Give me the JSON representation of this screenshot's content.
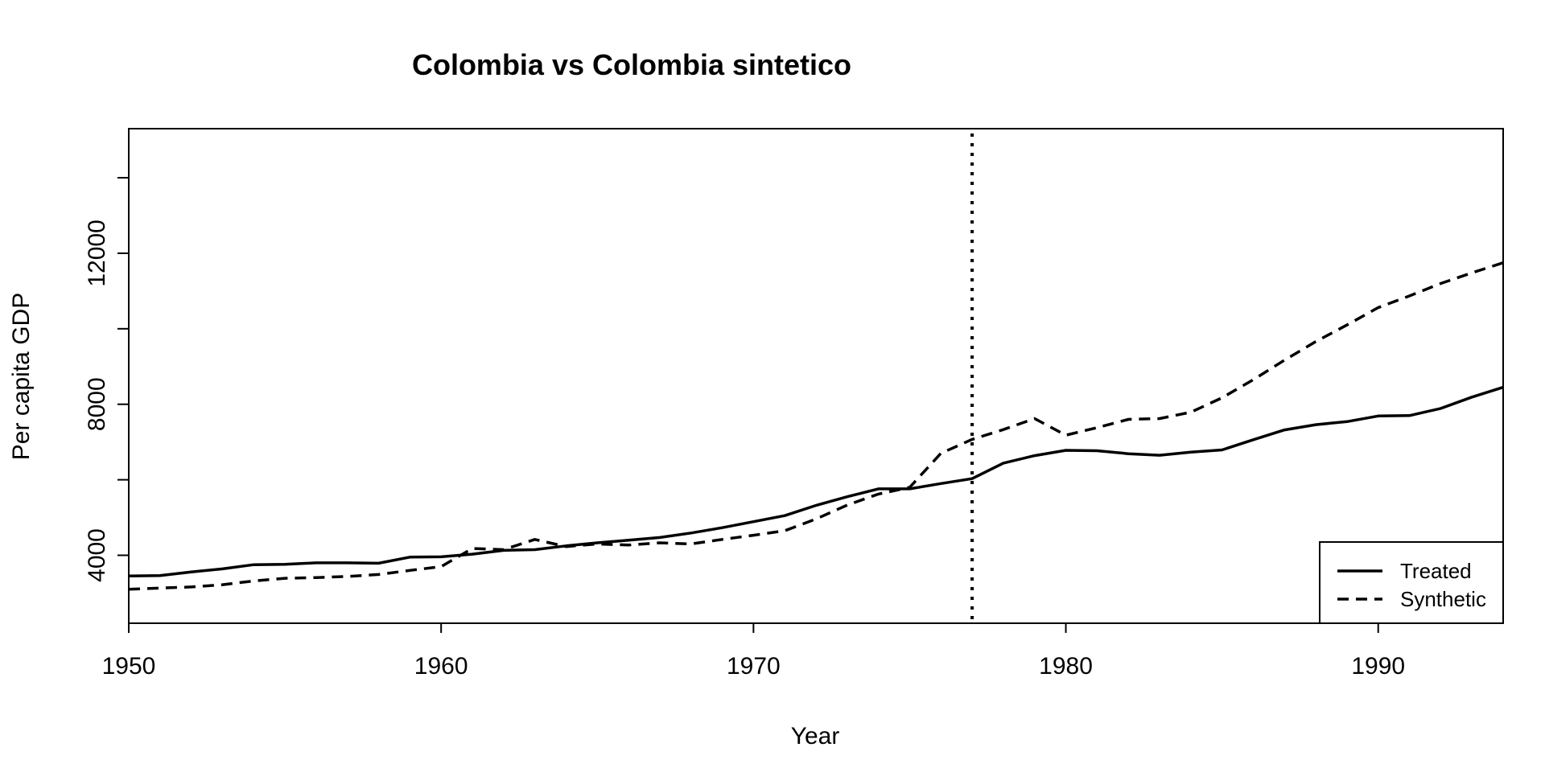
{
  "chart_data": {
    "type": "line",
    "title": "Colombia vs Colombia sintetico",
    "xlabel": "Year",
    "ylabel": "Per capita GDP",
    "xlim": [
      1950,
      1994
    ],
    "ylim": [
      2200,
      15300
    ],
    "x_ticks": [
      1950,
      1960,
      1970,
      1980,
      1990
    ],
    "y_ticks": [
      4000,
      6000,
      8000,
      10000,
      12000,
      14000
    ],
    "y_tick_labels_shown": [
      "4000",
      "8000",
      "12000"
    ],
    "x_tick_labels": [
      "1950",
      "1960",
      "1970",
      "1980",
      "1990"
    ],
    "y_tick_labels": [
      "4000",
      "8000",
      "12000"
    ],
    "intervention_year": 1977,
    "grid": false,
    "legend_position": "bottom-right",
    "x": [
      1950,
      1951,
      1952,
      1953,
      1954,
      1955,
      1956,
      1957,
      1958,
      1959,
      1960,
      1961,
      1962,
      1963,
      1964,
      1965,
      1966,
      1967,
      1968,
      1969,
      1970,
      1971,
      1972,
      1973,
      1974,
      1975,
      1976,
      1977,
      1978,
      1979,
      1980,
      1981,
      1982,
      1983,
      1984,
      1985,
      1986,
      1987,
      1988,
      1989,
      1990,
      1991,
      1992,
      1993,
      1994
    ],
    "series": [
      {
        "name": "Treated",
        "style": "solid",
        "values": [
          3450,
          3460,
          3560,
          3640,
          3750,
          3760,
          3800,
          3800,
          3790,
          3950,
          3960,
          4030,
          4130,
          4150,
          4250,
          4330,
          4400,
          4470,
          4590,
          4730,
          4890,
          5050,
          5320,
          5550,
          5760,
          5760,
          5900,
          6030,
          6440,
          6640,
          6780,
          6770,
          6690,
          6650,
          6730,
          6790,
          7060,
          7320,
          7460,
          7540,
          7690,
          7700,
          7890,
          8190,
          8450
        ]
      },
      {
        "name": "Synthetic",
        "style": "dashed",
        "values": [
          3100,
          3130,
          3160,
          3220,
          3320,
          3390,
          3410,
          3440,
          3490,
          3600,
          3700,
          4180,
          4150,
          4420,
          4230,
          4300,
          4270,
          4330,
          4300,
          4420,
          4530,
          4650,
          4960,
          5330,
          5620,
          5800,
          6700,
          7070,
          7330,
          7620,
          7180,
          7380,
          7600,
          7620,
          7790,
          8170,
          8650,
          9170,
          9660,
          10100,
          10560,
          10870,
          11200,
          11480,
          11750
        ]
      }
    ]
  }
}
